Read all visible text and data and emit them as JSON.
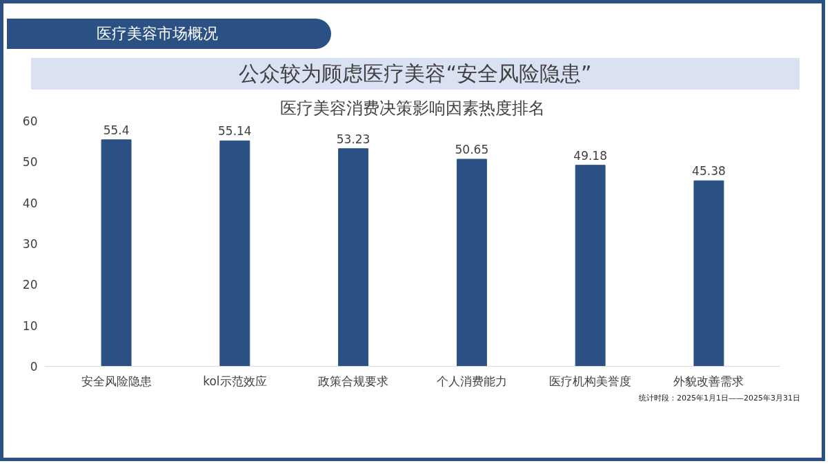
{
  "chart_data": {
    "type": "bar",
    "title": "公众较为顾虑医疗美容“安全风险隐患”",
    "subtitle": "医疗美容消费决策影响因素热度排名",
    "annotations": [
      "医疗美容市场概况",
      "统计时段：2025年1月1日——2025年3月31日"
    ],
    "categories": [
      "安全风险隐患",
      "kol示范效应",
      "政策合规要求",
      "个人消费能力",
      "医疗机构美誉度",
      "外貌改善需求"
    ],
    "values": [
      55.4,
      55.14,
      53.23,
      50.65,
      49.18,
      45.38
    ],
    "color": "#2b5084",
    "ylim": [
      0,
      60
    ],
    "yticks": [
      0,
      10,
      20,
      30,
      40,
      50,
      60
    ],
    "grid": false,
    "data_labels": true
  }
}
